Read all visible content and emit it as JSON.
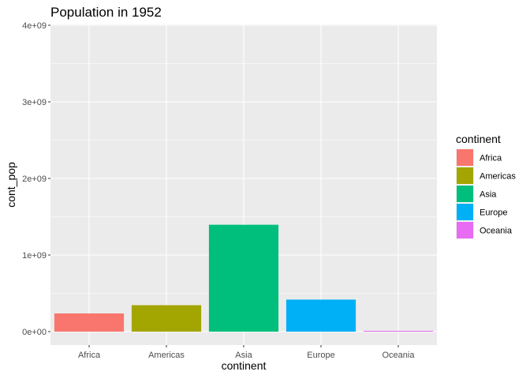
{
  "chart_data": {
    "type": "bar",
    "title": "Population in 1952",
    "xlabel": "continent",
    "ylabel": "cont_pop",
    "categories": [
      "Africa",
      "Americas",
      "Asia",
      "Europe",
      "Oceania"
    ],
    "values": [
      237640501,
      345152446,
      1395357352,
      418120846,
      10686006
    ],
    "ylim": [
      0,
      4000000000
    ],
    "yticks": [
      0,
      1000000000,
      2000000000,
      3000000000,
      4000000000
    ],
    "ytick_labels": [
      "0e+00",
      "1e+09",
      "2e+09",
      "3e+09",
      "4e+09"
    ],
    "colors": [
      "#F8766D",
      "#A3A500",
      "#00BF7D",
      "#00B0F6",
      "#E76BF3"
    ],
    "legend": {
      "title": "continent",
      "position": "right",
      "entries": [
        "Africa",
        "Americas",
        "Asia",
        "Europe",
        "Oceania"
      ]
    },
    "panel_background": "#EBEBEB",
    "grid_color": "#FFFFFF",
    "grid": true
  }
}
